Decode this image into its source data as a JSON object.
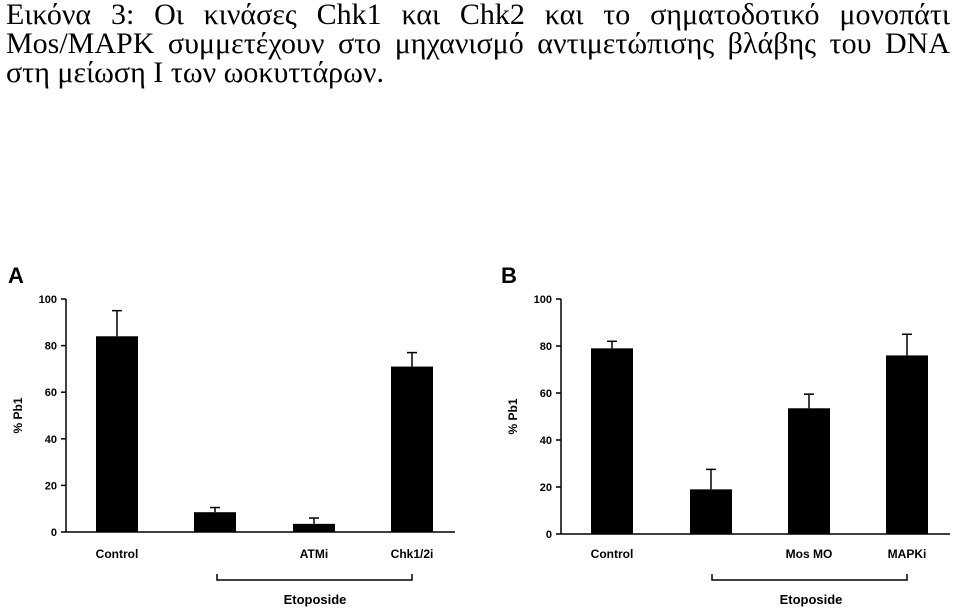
{
  "caption": {
    "label": "Εικόνα 3:",
    "text": "Οι κινάσες Chk1 και Chk2 και το σηματοδοτικό μονοπάτι Mos/MAPK συμμετέχουν στο μηχανισμό αντιμετώπισης βλάβης του DNA στη μείωση Ι των ωοκυττάρων."
  },
  "colors": {
    "bar": "#000000",
    "axis": "#000000",
    "background": "#ffffff"
  },
  "chart_data": [
    {
      "type": "bar",
      "panel": "A",
      "ylabel": "% Pb1",
      "ylim": [
        0,
        100
      ],
      "yticks": [
        "0",
        "20",
        "40",
        "60",
        "80",
        "100"
      ],
      "categories": [
        "Control",
        "",
        "ATMi",
        "Chk1/2i"
      ],
      "values": [
        84,
        8.5,
        3.5,
        71
      ],
      "errors": [
        11,
        2,
        2.5,
        6
      ],
      "group_label": "Etoposide",
      "grid": false
    },
    {
      "type": "bar",
      "panel": "B",
      "ylabel": "% Pb1",
      "ylim": [
        0,
        100
      ],
      "yticks": [
        "0",
        "20",
        "40",
        "60",
        "80",
        "100"
      ],
      "categories": [
        "Control",
        "",
        "Mos MO",
        "MAPKi"
      ],
      "values": [
        79,
        19,
        53.5,
        76
      ],
      "errors": [
        3,
        8.5,
        6,
        9
      ],
      "group_label": "Etoposide",
      "grid": false
    }
  ]
}
